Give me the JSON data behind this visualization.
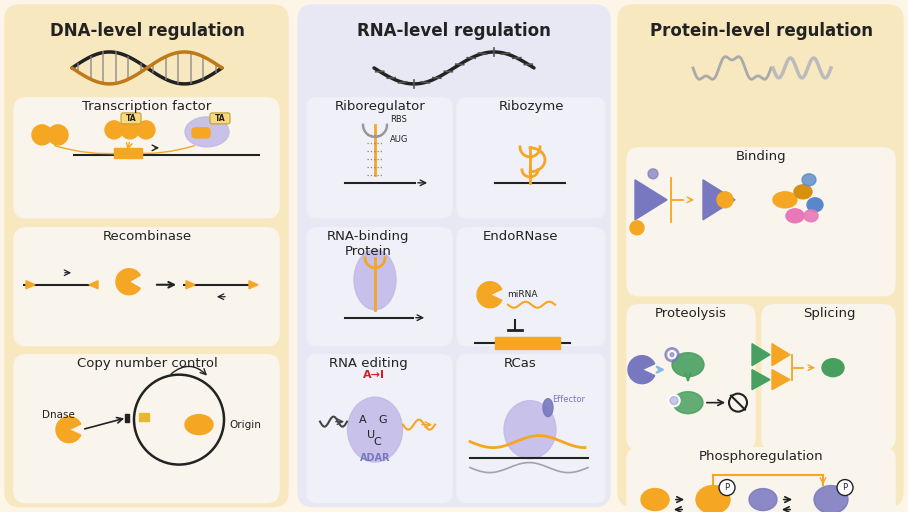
{
  "bg_color": "#fdf6e8",
  "left_panel_bg": "#f7e8c0",
  "mid_panel_bg": "#e8e8f5",
  "right_panel_bg": "#f7e8c0",
  "inner_bg": "#faf5ec",
  "inner_mid_bg": "#f0f0f8",
  "orange": "#f5a623",
  "dark_orange": "#d4880a",
  "blue_purple": "#7878c0",
  "green": "#48a060",
  "pink": "#e878b8",
  "blue": "#5888cc",
  "light_blue": "#88b8e8",
  "gray": "#888888",
  "black": "#222222",
  "light_purple": "#c0b8e8",
  "red": "#cc2222",
  "dna_brown": "#c07818",
  "dna_black": "#222222",
  "title1": "DNA-level regulation",
  "title2": "RNA-level regulation",
  "title3": "Protein-level regulation",
  "sub1a": "Transcription factor",
  "sub1b": "Recombinase",
  "sub1c": "Copy number control",
  "sub2a": "Riboregulator",
  "sub2b": "Ribozyme",
  "sub2c": "RNA-binding\nProtein",
  "sub2d": "EndoRNase",
  "sub2e": "RNA editing",
  "sub2f": "RCas",
  "sub3a": "Binding",
  "sub3b": "Proteolysis",
  "sub3c": "Splicing",
  "sub3d": "Phosphoregulation"
}
